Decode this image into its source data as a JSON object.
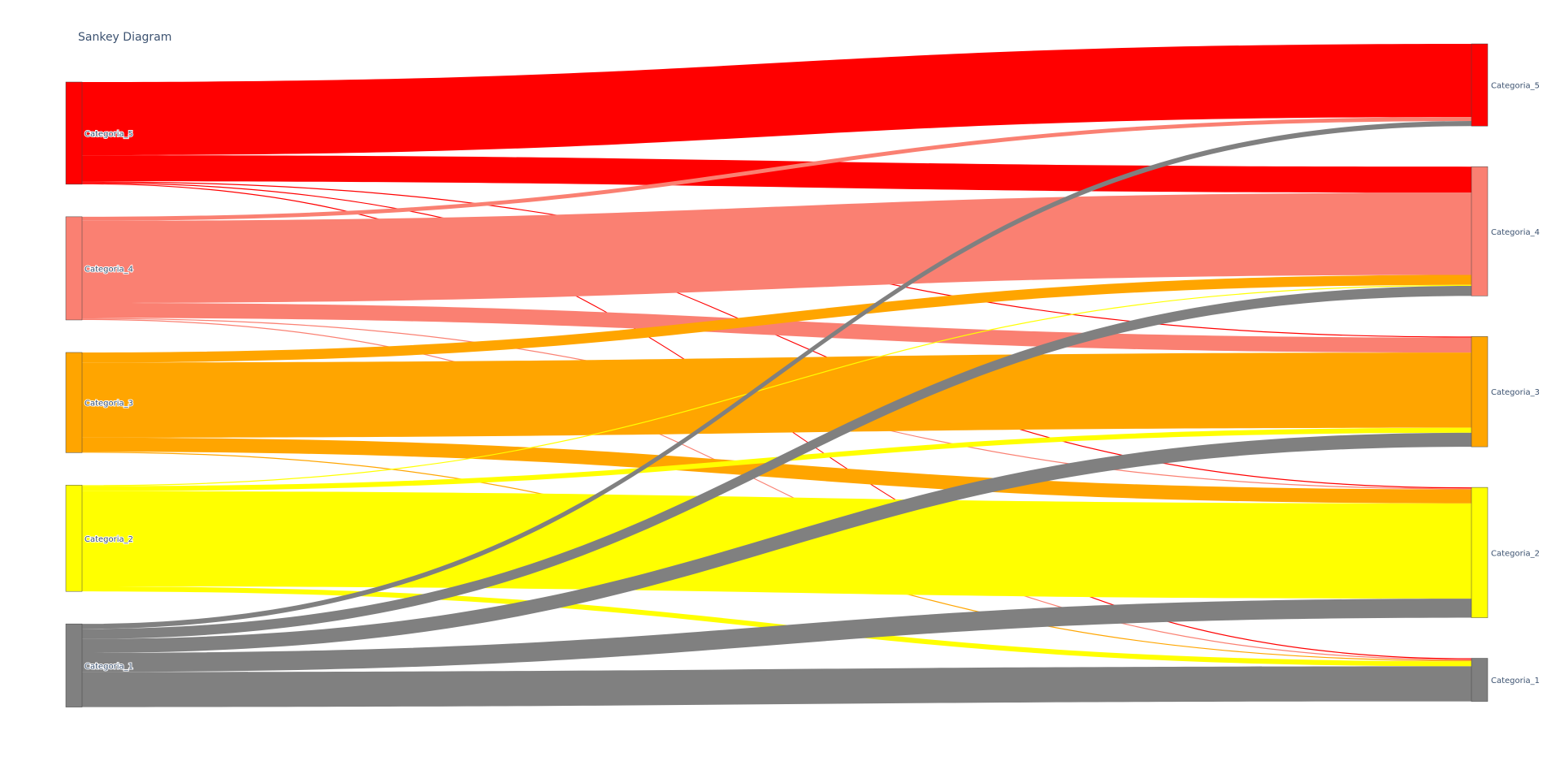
{
  "chart_data": {
    "type": "sankey",
    "title": "Sankey Diagram",
    "nodes": [
      {
        "id": "s5",
        "label": "Categoria_5",
        "side": "source",
        "color": "#ff0000"
      },
      {
        "id": "s4",
        "label": "Categoria_4",
        "side": "source",
        "color": "#fa8072"
      },
      {
        "id": "s3",
        "label": "Categoria_3",
        "side": "source",
        "color": "#ffa500"
      },
      {
        "id": "s2",
        "label": "Categoria_2",
        "side": "source",
        "color": "#ffff00"
      },
      {
        "id": "s1",
        "label": "Categoria_1",
        "side": "source",
        "color": "#808080"
      },
      {
        "id": "t5",
        "label": "Categoria_5",
        "side": "target",
        "color": "#ff0000"
      },
      {
        "id": "t4",
        "label": "Categoria_4",
        "side": "target",
        "color": "#fa8072"
      },
      {
        "id": "t3",
        "label": "Categoria_3",
        "side": "target",
        "color": "#ffa500"
      },
      {
        "id": "t2",
        "label": "Categoria_2",
        "side": "target",
        "color": "#ffff00"
      },
      {
        "id": "t1",
        "label": "Categoria_1",
        "side": "target",
        "color": "#808080"
      }
    ],
    "links": [
      {
        "source": "s5",
        "target": "t5",
        "value": 73
      },
      {
        "source": "s5",
        "target": "t4",
        "value": 26
      },
      {
        "source": "s5",
        "target": "t3",
        "value": 1
      },
      {
        "source": "s5",
        "target": "t2",
        "value": 1
      },
      {
        "source": "s5",
        "target": "t1",
        "value": 1
      },
      {
        "source": "s4",
        "target": "t5",
        "value": 4
      },
      {
        "source": "s4",
        "target": "t4",
        "value": 82
      },
      {
        "source": "s4",
        "target": "t3",
        "value": 15
      },
      {
        "source": "s4",
        "target": "t2",
        "value": 1
      },
      {
        "source": "s4",
        "target": "t1",
        "value": 1
      },
      {
        "source": "s3",
        "target": "t4",
        "value": 10
      },
      {
        "source": "s3",
        "target": "t3",
        "value": 75
      },
      {
        "source": "s3",
        "target": "t2",
        "value": 14
      },
      {
        "source": "s3",
        "target": "t1",
        "value": 1
      },
      {
        "source": "s2",
        "target": "t4",
        "value": 1
      },
      {
        "source": "s2",
        "target": "t3",
        "value": 5
      },
      {
        "source": "s2",
        "target": "t2",
        "value": 95
      },
      {
        "source": "s2",
        "target": "t1",
        "value": 5
      },
      {
        "source": "s1",
        "target": "t5",
        "value": 5
      },
      {
        "source": "s1",
        "target": "t4",
        "value": 10
      },
      {
        "source": "s1",
        "target": "t3",
        "value": 14
      },
      {
        "source": "s1",
        "target": "t2",
        "value": 19
      },
      {
        "source": "s1",
        "target": "t1",
        "value": 35
      }
    ]
  }
}
